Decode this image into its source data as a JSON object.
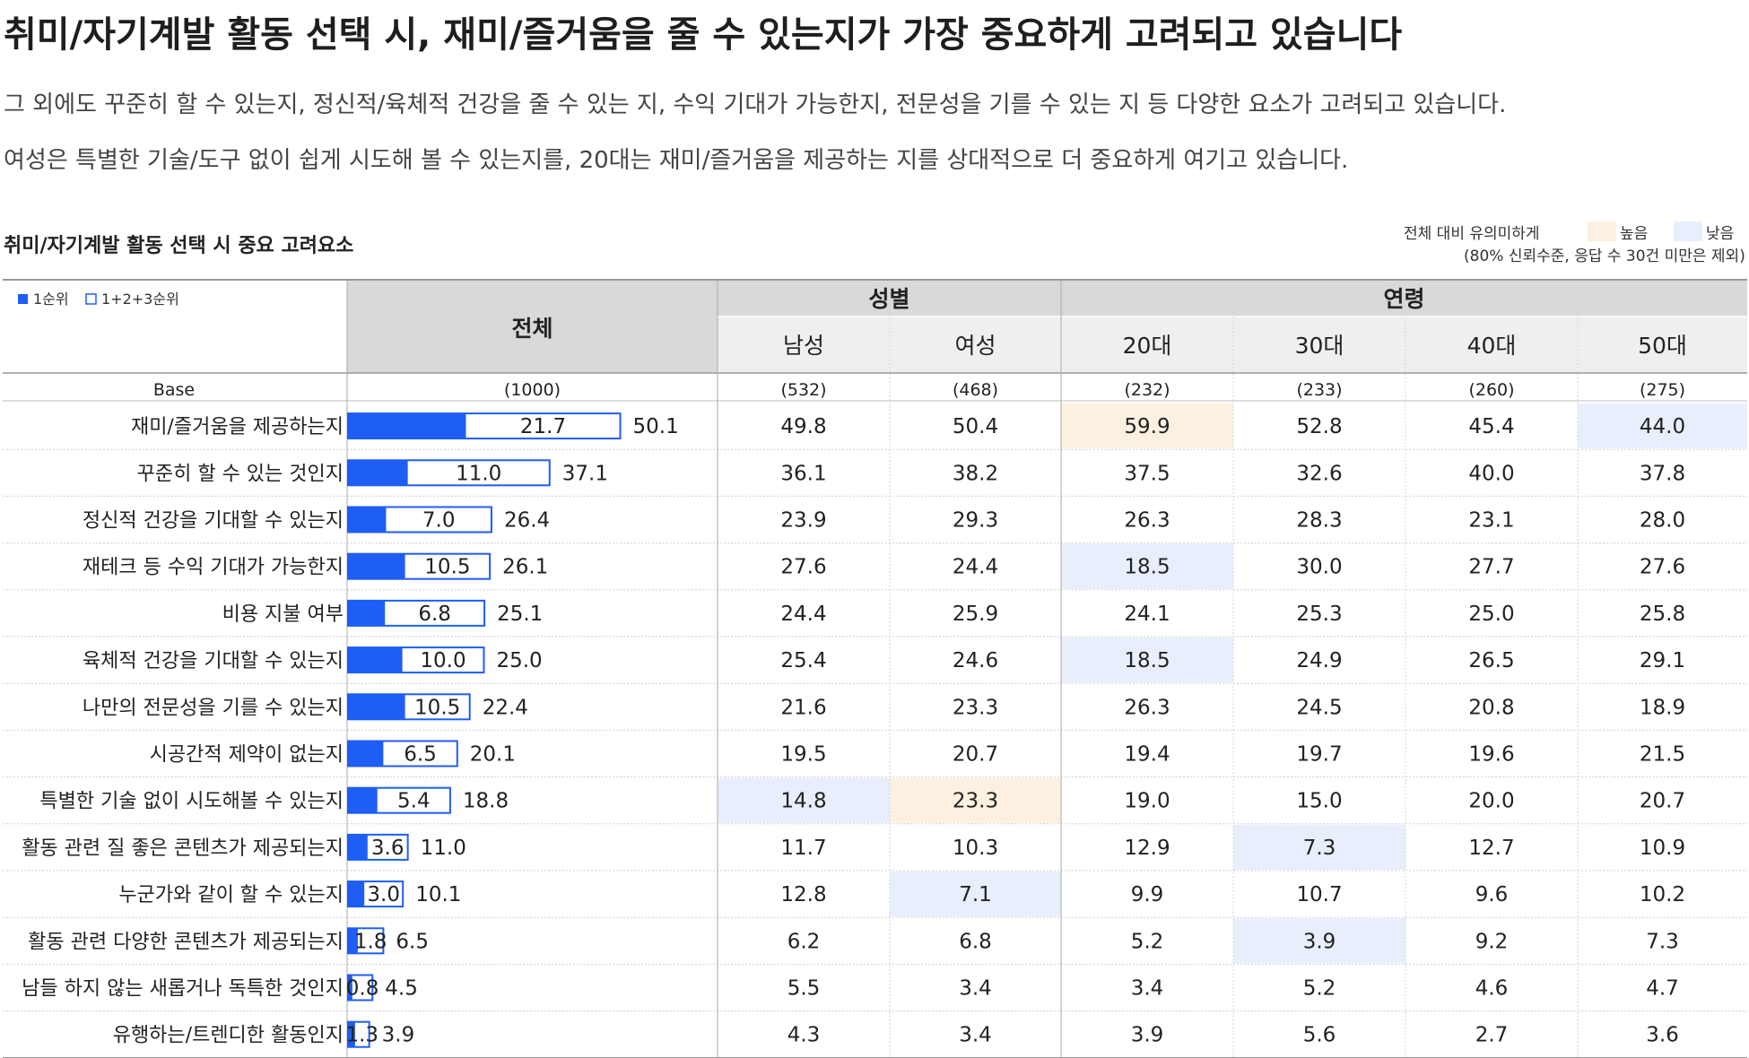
{
  "title": "취미/자기계발 활동 선택 시, 재미/즐거움을 줄 수 있는지가 가장 중요하게 고려되고 있습니다",
  "subtitle_lines": [
    "그 외에도 꾸준히 할 수 있는지, 정신적/육체적 건강을 줄 수 있는 지, 수익 기대가 가능한지, 전문성을 기를 수 있는 지 등 다양한 요소가 고려되고 있습니다.",
    "여성은 특별한 기술/도구 없이 쉽게 시도해 볼 수 있는지를, 20대는 재미/즐거움을 제공하는 지를 상대적으로 더 중요하게 여기고 있습니다."
  ],
  "significance": {
    "label": "전체 대비 유의미하게",
    "high": "높음",
    "low": "낮음",
    "note": "(80% 신뢰수준, 응답 수 30건 미만은 제외)",
    "high_color": "#fcf0e1",
    "low_color": "#e8eefc"
  },
  "colors": {
    "bar": "#1f5ef5",
    "outline": "#1f5ef5",
    "header_bg": "#d9d9d9",
    "subheader_bg": "#efefef"
  },
  "chart_data": {
    "type": "table",
    "title": "취미/자기계발 활동 선택 시 중요 고려요소",
    "legend": {
      "rank1": "1순위",
      "rank123": "1+2+3순위"
    },
    "base_label": "Base",
    "header": {
      "total": "전체",
      "gender": "성별",
      "age": "연령"
    },
    "columns": [
      "남성",
      "여성",
      "20대",
      "30대",
      "40대",
      "50대"
    ],
    "bases": {
      "total": "(1000)",
      "columns": [
        "(532)",
        "(468)",
        "(232)",
        "(233)",
        "(260)",
        "(275)"
      ]
    },
    "bar_max": 55,
    "rows": [
      {
        "label": "재미/즐거움을 제공하는지",
        "rank1": "21.7",
        "top3": "50.1",
        "values": [
          "49.8",
          "50.4",
          "59.9",
          "52.8",
          "45.4",
          "44.0"
        ],
        "sig": [
          "",
          "",
          "high",
          "",
          "",
          "low"
        ]
      },
      {
        "label": "꾸준히 할 수 있는 것인지",
        "rank1": "11.0",
        "top3": "37.1",
        "values": [
          "36.1",
          "38.2",
          "37.5",
          "32.6",
          "40.0",
          "37.8"
        ],
        "sig": [
          "",
          "",
          "",
          "",
          "",
          ""
        ]
      },
      {
        "label": "정신적 건강을 기대할 수 있는지",
        "rank1": "7.0",
        "top3": "26.4",
        "values": [
          "23.9",
          "29.3",
          "26.3",
          "28.3",
          "23.1",
          "28.0"
        ],
        "sig": [
          "",
          "",
          "",
          "",
          "",
          ""
        ]
      },
      {
        "label": "재테크 등 수익 기대가 가능한지",
        "rank1": "10.5",
        "top3": "26.1",
        "values": [
          "27.6",
          "24.4",
          "18.5",
          "30.0",
          "27.7",
          "27.6"
        ],
        "sig": [
          "",
          "",
          "low",
          "",
          "",
          ""
        ]
      },
      {
        "label": "비용 지불 여부",
        "rank1": "6.8",
        "top3": "25.1",
        "values": [
          "24.4",
          "25.9",
          "24.1",
          "25.3",
          "25.0",
          "25.8"
        ],
        "sig": [
          "",
          "",
          "",
          "",
          "",
          ""
        ]
      },
      {
        "label": "육체적 건강을 기대할 수 있는지",
        "rank1": "10.0",
        "top3": "25.0",
        "values": [
          "25.4",
          "24.6",
          "18.5",
          "24.9",
          "26.5",
          "29.1"
        ],
        "sig": [
          "",
          "",
          "low",
          "",
          "",
          ""
        ]
      },
      {
        "label": "나만의 전문성을 기를 수 있는지",
        "rank1": "10.5",
        "top3": "22.4",
        "values": [
          "21.6",
          "23.3",
          "26.3",
          "24.5",
          "20.8",
          "18.9"
        ],
        "sig": [
          "",
          "",
          "",
          "",
          "",
          ""
        ]
      },
      {
        "label": "시공간적 제약이 없는지",
        "rank1": "6.5",
        "top3": "20.1",
        "values": [
          "19.5",
          "20.7",
          "19.4",
          "19.7",
          "19.6",
          "21.5"
        ],
        "sig": [
          "",
          "",
          "",
          "",
          "",
          ""
        ]
      },
      {
        "label": "특별한 기술 없이 시도해볼 수 있는지",
        "rank1": "5.4",
        "top3": "18.8",
        "values": [
          "14.8",
          "23.3",
          "19.0",
          "15.0",
          "20.0",
          "20.7"
        ],
        "sig": [
          "low",
          "high",
          "",
          "",
          "",
          ""
        ]
      },
      {
        "label": "활동 관련 질 좋은 콘텐츠가 제공되는지",
        "rank1": "3.6",
        "top3": "11.0",
        "values": [
          "11.7",
          "10.3",
          "12.9",
          "7.3",
          "12.7",
          "10.9"
        ],
        "sig": [
          "",
          "",
          "",
          "low",
          "",
          ""
        ]
      },
      {
        "label": "누군가와 같이 할 수 있는지",
        "rank1": "3.0",
        "top3": "10.1",
        "values": [
          "12.8",
          "7.1",
          "9.9",
          "10.7",
          "9.6",
          "10.2"
        ],
        "sig": [
          "",
          "low",
          "",
          "",
          "",
          ""
        ]
      },
      {
        "label": "활동 관련 다양한 콘텐츠가 제공되는지",
        "rank1": "1.8",
        "top3": "6.5",
        "values": [
          "6.2",
          "6.8",
          "5.2",
          "3.9",
          "9.2",
          "7.3"
        ],
        "sig": [
          "",
          "",
          "",
          "low",
          "",
          ""
        ]
      },
      {
        "label": "남들 하지 않는 새롭거나 독특한 것인지",
        "rank1": "0.8",
        "top3": "4.5",
        "values": [
          "5.5",
          "3.4",
          "3.4",
          "5.2",
          "4.6",
          "4.7"
        ],
        "sig": [
          "",
          "",
          "",
          "",
          "",
          ""
        ]
      },
      {
        "label": "유행하는/트렌디한 활동인지",
        "rank1": "1.3",
        "top3": "3.9",
        "values": [
          "4.3",
          "3.4",
          "3.9",
          "5.6",
          "2.7",
          "3.6"
        ],
        "sig": [
          "",
          "",
          "",
          "",
          "",
          ""
        ]
      }
    ]
  }
}
